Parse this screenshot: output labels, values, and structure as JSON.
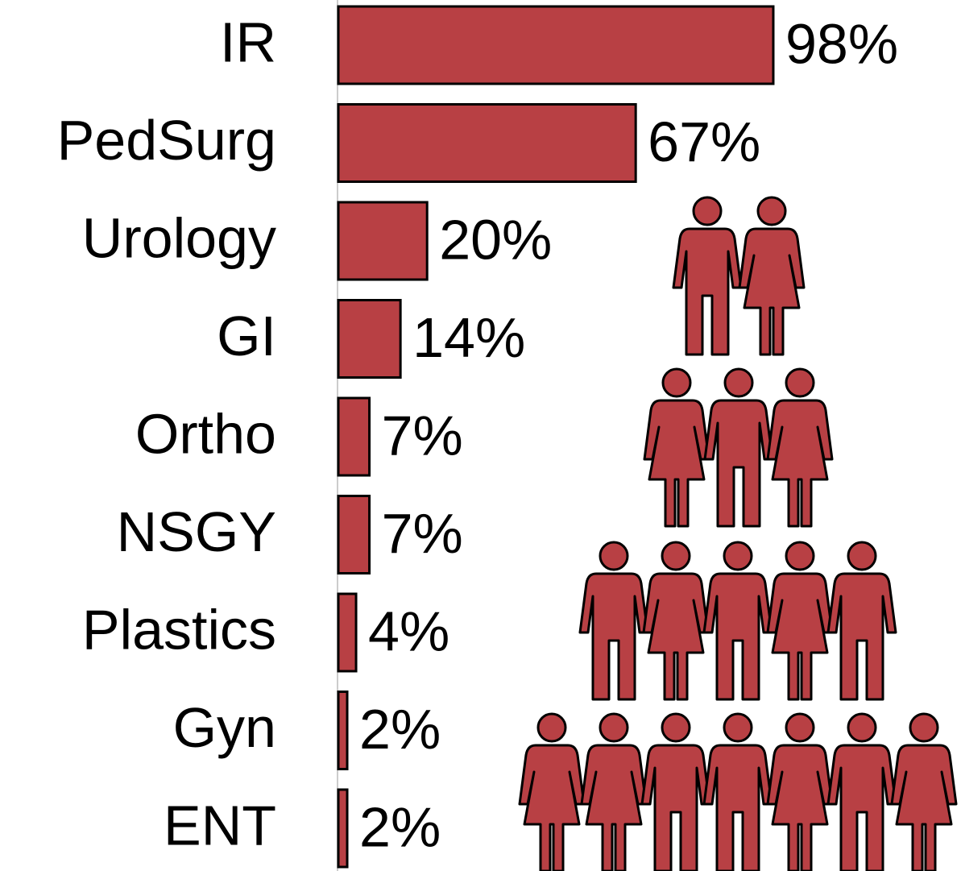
{
  "chart_data": {
    "type": "bar",
    "orientation": "horizontal",
    "categories": [
      "IR",
      "PedSurg",
      "Urology",
      "GI",
      "Ortho",
      "NSGY",
      "Plastics",
      "Gyn",
      "ENT"
    ],
    "values": [
      98,
      67,
      20,
      14,
      7,
      7,
      4,
      2,
      2
    ],
    "value_labels": [
      "98%",
      "67%",
      "20%",
      "14%",
      "7%",
      "7%",
      "4%",
      "2%",
      "2%"
    ],
    "color": "#b84044"
  }
}
